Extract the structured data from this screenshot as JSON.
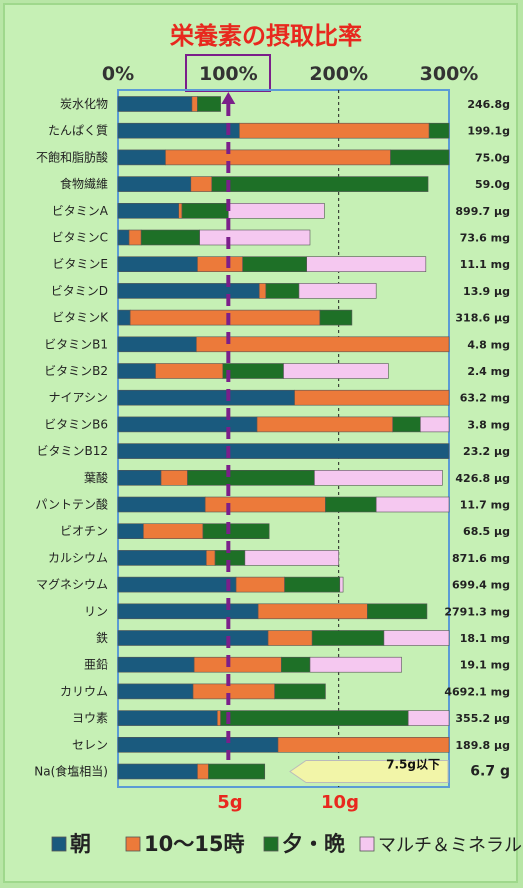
{
  "chart_data": {
    "type": "bar",
    "stacked": true,
    "orientation": "horizontal",
    "title": "栄養素の摂取比率",
    "x_ticks": [
      "0%",
      "100%",
      "200%",
      "300%"
    ],
    "xlim": [
      0,
      300
    ],
    "grid": "dashed vertical at 200%",
    "reference_line": {
      "value": 100,
      "color": "#7b1f8a"
    },
    "legend_placement": "bottom",
    "colors": {
      "morning": "#1a5a7e",
      "midday": "#ec7a3a",
      "evening": "#1e7027",
      "supplement": "#f5c8f0"
    },
    "series": [
      {
        "name": "朝"
      },
      {
        "name": "10～15時"
      },
      {
        "name": "夕・晩"
      },
      {
        "name": "マルチ＆ミネラル"
      }
    ],
    "categories": [
      {
        "label": "炭水化物",
        "amount": "246.8g",
        "values": [
          67,
          5,
          21,
          0
        ]
      },
      {
        "label": "たんぱく質",
        "amount": "199.1g",
        "values": [
          110,
          172,
          18,
          0
        ]
      },
      {
        "label": "不飽和脂肪酸",
        "amount": "75.0g",
        "values": [
          43,
          204,
          53,
          0
        ]
      },
      {
        "label": "食物繊維",
        "amount": "59.0g",
        "values": [
          66,
          19,
          196,
          0
        ]
      },
      {
        "label": "ビタミンA",
        "amount": "899.7 μg",
        "values": [
          55,
          3,
          42,
          87
        ]
      },
      {
        "label": "ビタミンC",
        "amount": "73.6 mg",
        "values": [
          10,
          11,
          53,
          100
        ]
      },
      {
        "label": "ビタミンE",
        "amount": "11.1 mg",
        "values": [
          72,
          41,
          58,
          108
        ]
      },
      {
        "label": "ビタミンD",
        "amount": "13.9 μg",
        "values": [
          128,
          6,
          30,
          70
        ]
      },
      {
        "label": "ビタミンK",
        "amount": "318.6 μg",
        "values": [
          11,
          172,
          29,
          0
        ]
      },
      {
        "label": "ビタミンB1",
        "amount": "4.8 mg",
        "values": [
          71,
          229,
          0,
          0
        ]
      },
      {
        "label": "ビタミンB2",
        "amount": "2.4 mg",
        "values": [
          34,
          61,
          55,
          95
        ]
      },
      {
        "label": "ナイアシン",
        "amount": "63.2 mg",
        "values": [
          160,
          140,
          0,
          0
        ]
      },
      {
        "label": "ビタミンB6",
        "amount": "3.8 mg",
        "values": [
          126,
          123,
          25,
          26
        ]
      },
      {
        "label": "ビタミンB12",
        "amount": "23.2 μg",
        "values": [
          300,
          0,
          0,
          0
        ]
      },
      {
        "label": "葉酸",
        "amount": "426.8 μg",
        "values": [
          39,
          24,
          115,
          116
        ]
      },
      {
        "label": "パントテン酸",
        "amount": "11.7 mg",
        "values": [
          79,
          109,
          46,
          66
        ]
      },
      {
        "label": "ビオチン",
        "amount": "68.5 μg",
        "values": [
          23,
          54,
          60,
          0
        ]
      },
      {
        "label": "カルシウム",
        "amount": "871.6 mg",
        "values": [
          80,
          8,
          27,
          85
        ]
      },
      {
        "label": "マグネシウム",
        "amount": "699.4 mg",
        "values": [
          107,
          44,
          50,
          3
        ]
      },
      {
        "label": "リン",
        "amount": "2791.3 mg",
        "values": [
          127,
          99,
          54,
          0
        ]
      },
      {
        "label": "鉄",
        "amount": "18.1 mg",
        "values": [
          136,
          40,
          65,
          59
        ]
      },
      {
        "label": "亜鉛",
        "amount": "19.1 mg",
        "values": [
          69,
          79,
          26,
          83
        ]
      },
      {
        "label": "カリウム",
        "amount": "4692.1 mg",
        "values": [
          68,
          74,
          46,
          0
        ]
      },
      {
        "label": "ヨウ素",
        "amount": "355.2 μg",
        "values": [
          90,
          3,
          170,
          37
        ]
      },
      {
        "label": "セレン",
        "amount": "189.8 μg",
        "values": [
          145,
          155,
          0,
          0
        ]
      },
      {
        "label": "Na(食塩相当)",
        "amount": "6.7 g",
        "values": [
          72,
          10,
          51,
          0
        ]
      }
    ],
    "salt_axis": {
      "ticks": [
        "5g",
        "10g"
      ]
    },
    "note": "7.5g以下"
  }
}
